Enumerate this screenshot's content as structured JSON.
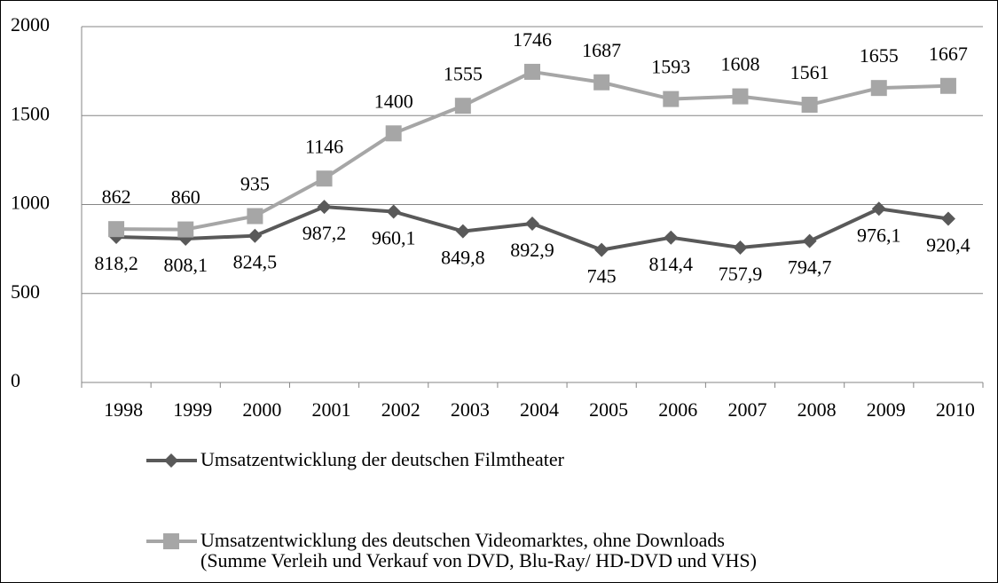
{
  "chart_data": {
    "type": "line",
    "categories": [
      "1998",
      "1999",
      "2000",
      "2001",
      "2002",
      "2003",
      "2004",
      "2005",
      "2006",
      "2007",
      "2008",
      "2009",
      "2010"
    ],
    "series": [
      {
        "name": "Umsatzentwicklung der deutschen Filmtheater",
        "color": "#595959",
        "marker": "diamond",
        "values": [
          818.2,
          808.1,
          824.5,
          987.2,
          960.1,
          849.8,
          892.9,
          745,
          814.4,
          757.9,
          794.7,
          976.1,
          920.4
        ],
        "value_labels": [
          "818,2",
          "808,1",
          "824,5",
          "987,2",
          "960,1",
          "849,8",
          "892,9",
          "745",
          "814,4",
          "757,9",
          "794,7",
          "976,1",
          "920,4"
        ],
        "label_position": "below"
      },
      {
        "name": "Umsatzentwicklung des deutschen Videomarktes, ohne Downloads\n(Summe Verleih und Verkauf von DVD, Blu-Ray/ HD-DVD und VHS)",
        "color": "#a6a6a6",
        "marker": "square",
        "values": [
          862,
          860,
          935,
          1146,
          1400,
          1555,
          1746,
          1687,
          1593,
          1608,
          1561,
          1655,
          1667
        ],
        "label_position": "above"
      }
    ],
    "ylim": [
      0,
      2000
    ],
    "yticks": [
      0,
      500,
      1000,
      1500,
      2000
    ],
    "grid": true,
    "legend": "bottom"
  }
}
